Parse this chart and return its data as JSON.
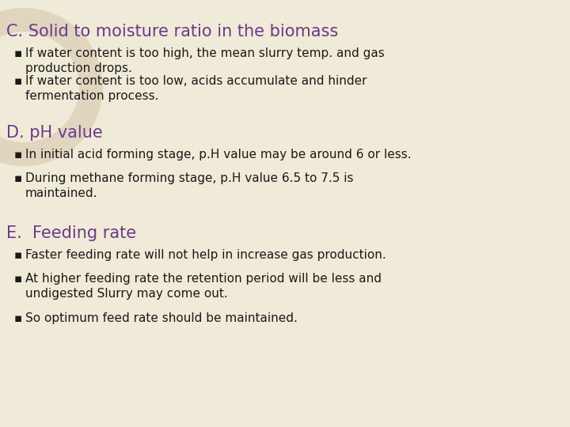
{
  "background_color": "#f0ead8",
  "watermark_color": "#e0d5be",
  "title_C": "C. Solid to moisture ratio in the biomass",
  "title_D": "D. pH value",
  "title_E": "E.  Feeding rate",
  "title_color": "#6b3a8a",
  "body_color": "#1a1a1a",
  "bullet_color": "#1a1a1a",
  "bullets_C": [
    "If water content is too high, the mean slurry temp. and gas\nproduction drops.",
    "If water content is too low, acids accumulate and hinder\nfermentation process."
  ],
  "bullets_D": [
    "In initial acid forming stage, p.H value may be around 6 or less.",
    "During methane forming stage, p.H value 6.5 to 7.5 is\nmaintained."
  ],
  "bullets_E": [
    "Faster feeding rate will not help in increase gas production.",
    "At higher feeding rate the retention period will be less and\nundigested Slurry may come out.",
    "So optimum feed rate should be maintained."
  ],
  "title_fontsize": 15,
  "body_fontsize": 11,
  "fig_width": 7.2,
  "fig_height": 5.4
}
